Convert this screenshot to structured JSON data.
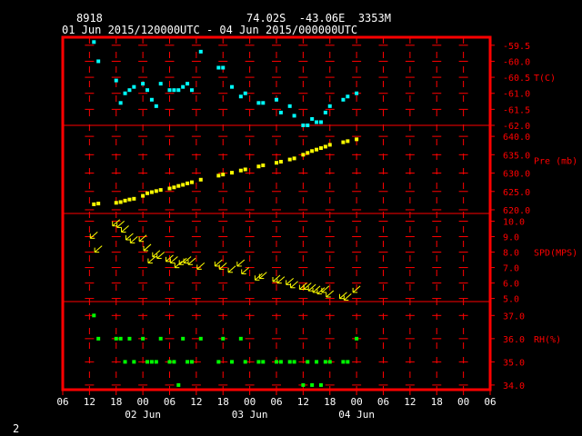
{
  "header": {
    "station": "8918",
    "location": "74.02S  -43.06E  3353M",
    "period": "01 Jun 2015/120000UTC - 04 Jun 2015/000000UTC",
    "footer_num": "2"
  },
  "colors": {
    "frame": "#ff0000",
    "tick": "#ff0000",
    "label": "#ff0000",
    "axis_text": "#ffffff",
    "temp": "#00ffff",
    "pres": "#ffff00",
    "wind": "#ffff00",
    "rh": "#00ff00"
  },
  "chart_data": {
    "type": "scatter",
    "x_axis": {
      "unit": "hours since 01 Jun 00UTC",
      "range": [
        6,
        102
      ],
      "tick_hours": [
        6,
        12,
        18,
        24,
        30,
        36,
        42,
        48,
        54,
        60,
        66,
        72,
        78,
        84,
        90,
        96,
        102
      ],
      "tick_labels": [
        "06",
        "12",
        "18",
        "00",
        "06",
        "12",
        "18",
        "00",
        "06",
        "12",
        "18",
        "00",
        "06",
        "12",
        "18",
        "00",
        "06"
      ],
      "day_labels": [
        {
          "hour": 24,
          "text": "02 Jun"
        },
        {
          "hour": 48,
          "text": "03 Jun"
        },
        {
          "hour": 72,
          "text": "04 Jun"
        }
      ]
    },
    "panels": [
      {
        "name": "T(C)",
        "label": "T(C)",
        "kind": "points",
        "range": [
          -62.0,
          -59.25
        ],
        "ticks": [
          -59.5,
          -60.0,
          -60.5,
          -61.0,
          -61.5,
          -62.0
        ],
        "tick_labels": [
          "-59.5",
          "-60.0",
          "-60.5",
          "-61.0",
          "-61.5",
          "-62.0"
        ],
        "label_at": -60.5,
        "x": [
          13,
          14,
          18,
          19,
          20,
          21,
          22,
          24,
          25,
          26,
          27,
          28,
          30,
          31,
          32,
          33,
          34,
          35,
          37,
          41,
          42,
          44,
          46,
          47,
          50,
          51,
          54,
          55,
          57,
          58,
          60,
          61,
          62,
          63,
          64,
          65,
          66,
          69,
          70,
          72
        ],
        "y": [
          -59.4,
          -60.0,
          -60.6,
          -61.3,
          -61.0,
          -60.9,
          -60.8,
          -60.7,
          -60.9,
          -61.2,
          -61.4,
          -60.7,
          -60.9,
          -60.9,
          -60.9,
          -60.8,
          -60.7,
          -60.9,
          -59.7,
          -60.2,
          -60.2,
          -60.8,
          -61.1,
          -61.0,
          -61.3,
          -61.3,
          -61.2,
          -61.6,
          -61.4,
          -61.7,
          -62.0,
          -62.0,
          -61.8,
          -61.9,
          -61.9,
          -61.6,
          -61.4,
          -61.2,
          -61.1,
          -61.0
        ]
      },
      {
        "name": "Pre (mb)",
        "label": "Pre (mb)",
        "kind": "points",
        "range": [
          619,
          643
        ],
        "ticks": [
          640,
          635,
          630,
          625,
          620
        ],
        "tick_labels": [
          "640.0",
          "635.0",
          "630.0",
          "625.0",
          "620.0"
        ],
        "label_at": 633.5,
        "x": [
          13,
          14,
          18,
          19,
          20,
          21,
          22,
          24,
          25,
          26,
          27,
          28,
          30,
          31,
          32,
          33,
          34,
          35,
          37,
          41,
          42,
          44,
          46,
          47,
          50,
          51,
          54,
          55,
          57,
          58,
          60,
          61,
          62,
          63,
          64,
          65,
          66,
          69,
          70,
          72
        ],
        "y": [
          621.5,
          621.7,
          621.9,
          622.1,
          622.5,
          622.8,
          623.0,
          623.8,
          624.5,
          624.8,
          625.1,
          625.4,
          625.8,
          626.1,
          626.5,
          626.8,
          627.2,
          627.5,
          628.2,
          629.3,
          629.6,
          630.1,
          630.7,
          631.0,
          631.8,
          632.1,
          632.8,
          633.1,
          633.7,
          634.0,
          635.0,
          635.5,
          636.0,
          636.4,
          636.8,
          637.2,
          637.7,
          638.4,
          638.7,
          639.2
        ]
      },
      {
        "name": "SPD(MPS)",
        "label": "SPD(MPS)",
        "kind": "wind",
        "range": [
          4.8,
          10.5
        ],
        "ticks": [
          10.0,
          9.0,
          8.0,
          7.0,
          6.0,
          5.0
        ],
        "tick_labels": [
          "10.0",
          "9.0",
          "8.0",
          "7.0",
          "6.0",
          "5.0"
        ],
        "label_at": 8.0,
        "x": [
          13,
          14,
          18,
          19,
          20,
          21,
          22,
          24,
          25,
          26,
          27,
          28,
          30,
          31,
          32,
          33,
          34,
          35,
          37,
          41,
          42,
          44,
          46,
          47,
          50,
          51,
          54,
          55,
          57,
          58,
          60,
          61,
          62,
          63,
          64,
          65,
          66,
          69,
          70,
          72
        ],
        "y": [
          9.1,
          8.2,
          9.9,
          9.8,
          9.5,
          9.0,
          8.8,
          8.9,
          8.3,
          7.5,
          7.9,
          7.8,
          7.6,
          7.5,
          7.2,
          7.4,
          7.5,
          7.4,
          7.1,
          7.3,
          7.1,
          6.9,
          7.3,
          6.8,
          6.4,
          6.5,
          6.3,
          6.2,
          6.1,
          5.9,
          5.8,
          5.8,
          5.7,
          5.6,
          5.5,
          5.6,
          5.3,
          5.2,
          5.1,
          5.6
        ],
        "direction_deg": 225
      },
      {
        "name": "RH(%)",
        "label": "RH(%)",
        "kind": "points",
        "range": [
          33.8,
          37.6
        ],
        "ticks": [
          37.0,
          36.0,
          35.0,
          34.0
        ],
        "tick_labels": [
          "37.0",
          "36.0",
          "35.0",
          "34.0"
        ],
        "label_at": 36.0,
        "x": [
          13,
          14,
          18,
          19,
          20,
          21,
          22,
          24,
          25,
          26,
          27,
          28,
          30,
          31,
          32,
          33,
          34,
          35,
          37,
          41,
          42,
          44,
          46,
          47,
          50,
          51,
          54,
          55,
          57,
          58,
          60,
          61,
          62,
          63,
          64,
          65,
          66,
          69,
          70,
          72
        ],
        "y": [
          37.0,
          36.0,
          36.0,
          36.0,
          35.0,
          36.0,
          35.0,
          36.0,
          35.0,
          35.0,
          35.0,
          36.0,
          35.0,
          35.0,
          34.0,
          36.0,
          35.0,
          35.0,
          36.0,
          35.0,
          36.0,
          35.0,
          36.0,
          35.0,
          35.0,
          35.0,
          35.0,
          35.0,
          35.0,
          35.0,
          34.0,
          35.0,
          34.0,
          35.0,
          34.0,
          35.0,
          35.0,
          35.0,
          35.0,
          36.0
        ]
      }
    ]
  }
}
